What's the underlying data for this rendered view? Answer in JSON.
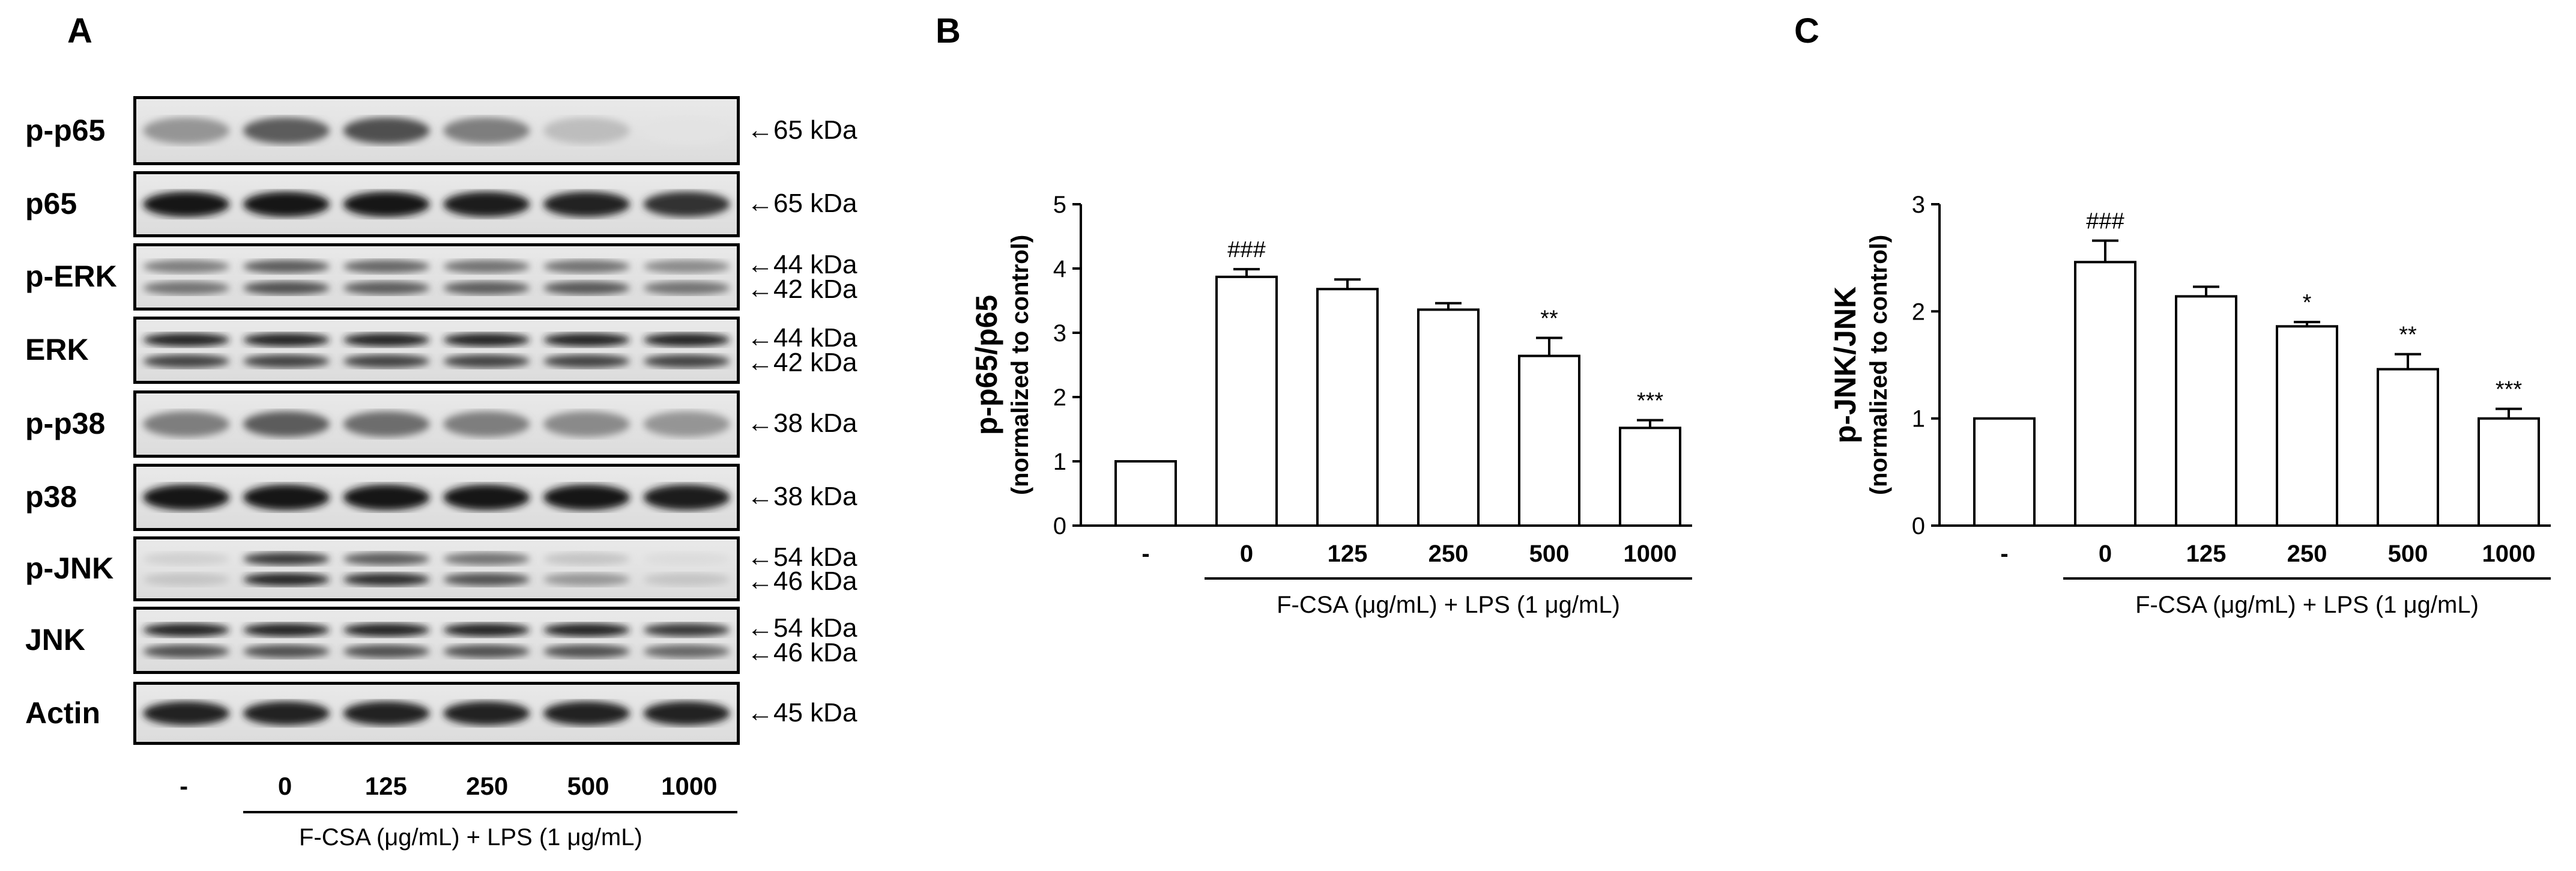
{
  "panelA": {
    "letter": "A",
    "blots": [
      {
        "label": "p-p65",
        "markers": [
          "←65 kDa"
        ],
        "bands": [
          [
            0.45,
            0.7,
            0.75,
            0.55,
            0.28,
            0.12
          ]
        ],
        "nbands": 1
      },
      {
        "label": "p65",
        "markers": [
          "←65 kDa"
        ],
        "bands": [
          [
            1,
            1,
            1,
            0.97,
            0.95,
            0.88
          ]
        ],
        "nbands": 1
      },
      {
        "label": "p-ERK",
        "markers": [
          "←44 kDa",
          "←42 kDa"
        ],
        "bands": [
          [
            0.55,
            0.7,
            0.65,
            0.6,
            0.6,
            0.5
          ],
          [
            0.6,
            0.75,
            0.7,
            0.7,
            0.72,
            0.6
          ]
        ],
        "nbands": 2
      },
      {
        "label": "ERK",
        "markers": [
          "←44 kDa",
          "←42 kDa"
        ],
        "bands": [
          [
            0.95,
            0.95,
            0.95,
            0.95,
            0.95,
            0.95
          ],
          [
            0.8,
            0.8,
            0.8,
            0.8,
            0.8,
            0.8
          ]
        ],
        "nbands": 2
      },
      {
        "label": "p-p38",
        "markers": [
          "←38 kDa"
        ],
        "bands": [
          [
            0.55,
            0.7,
            0.62,
            0.55,
            0.5,
            0.45
          ]
        ],
        "nbands": 1
      },
      {
        "label": "p38",
        "markers": [
          "←38 kDa"
        ],
        "bands": [
          [
            1,
            1,
            1,
            1,
            1,
            0.97
          ]
        ],
        "nbands": 1
      },
      {
        "label": "p-JNK",
        "markers": [
          "←54 kDa",
          "←46 kDa"
        ],
        "bands": [
          [
            0.2,
            0.85,
            0.7,
            0.6,
            0.25,
            0.15
          ],
          [
            0.25,
            0.95,
            0.9,
            0.75,
            0.45,
            0.25
          ]
        ],
        "nbands": 2
      },
      {
        "label": "JNK",
        "markers": [
          "←54 kDa",
          "←46 kDa"
        ],
        "bands": [
          [
            0.95,
            0.95,
            0.95,
            0.95,
            0.95,
            0.85
          ],
          [
            0.75,
            0.75,
            0.75,
            0.75,
            0.75,
            0.65
          ]
        ],
        "nbands": 2
      },
      {
        "label": "Actin",
        "markers": [
          "←45 kDa"
        ],
        "bands": [
          [
            0.95,
            0.95,
            0.95,
            0.95,
            0.95,
            0.95
          ]
        ],
        "nbands": 1
      }
    ],
    "lanes": [
      "-",
      "0",
      "125",
      "250",
      "500",
      "1000"
    ],
    "xcaption": "F-CSA (μg/mL) + LPS (1 μg/mL)"
  },
  "chart_data": [
    {
      "type": "bar",
      "panel": "B",
      "categories": [
        "-",
        "0",
        "125",
        "250",
        "500",
        "1000"
      ],
      "values": [
        1.0,
        3.87,
        3.68,
        3.36,
        2.64,
        1.52
      ],
      "errors": [
        0.0,
        0.12,
        0.15,
        0.1,
        0.28,
        0.12
      ],
      "annotations": [
        "",
        "###",
        "",
        "",
        "**",
        "***"
      ],
      "ylabel": "p-p65/p65",
      "ylabel_sub": "(normalized to control)",
      "xcaption": "F-CSA  (μg/mL) + LPS (1 μg/mL)",
      "ylim": [
        0,
        5
      ],
      "yticks": [
        0,
        1,
        2,
        3,
        4,
        5
      ]
    },
    {
      "type": "bar",
      "panel": "C",
      "categories": [
        "-",
        "0",
        "125",
        "250",
        "500",
        "1000"
      ],
      "values": [
        1.0,
        2.46,
        2.14,
        1.86,
        1.46,
        1.0
      ],
      "errors": [
        0.0,
        0.2,
        0.09,
        0.04,
        0.14,
        0.09
      ],
      "annotations": [
        "",
        "###",
        "",
        "*",
        "**",
        "***"
      ],
      "ylabel": "p-JNK/JNK",
      "ylabel_sub": "(normalized to control)",
      "xcaption": "F-CSA  (μg/mL) + LPS (1 μg/mL)",
      "ylim": [
        0,
        3
      ],
      "yticks": [
        0,
        1,
        2,
        3
      ]
    }
  ]
}
